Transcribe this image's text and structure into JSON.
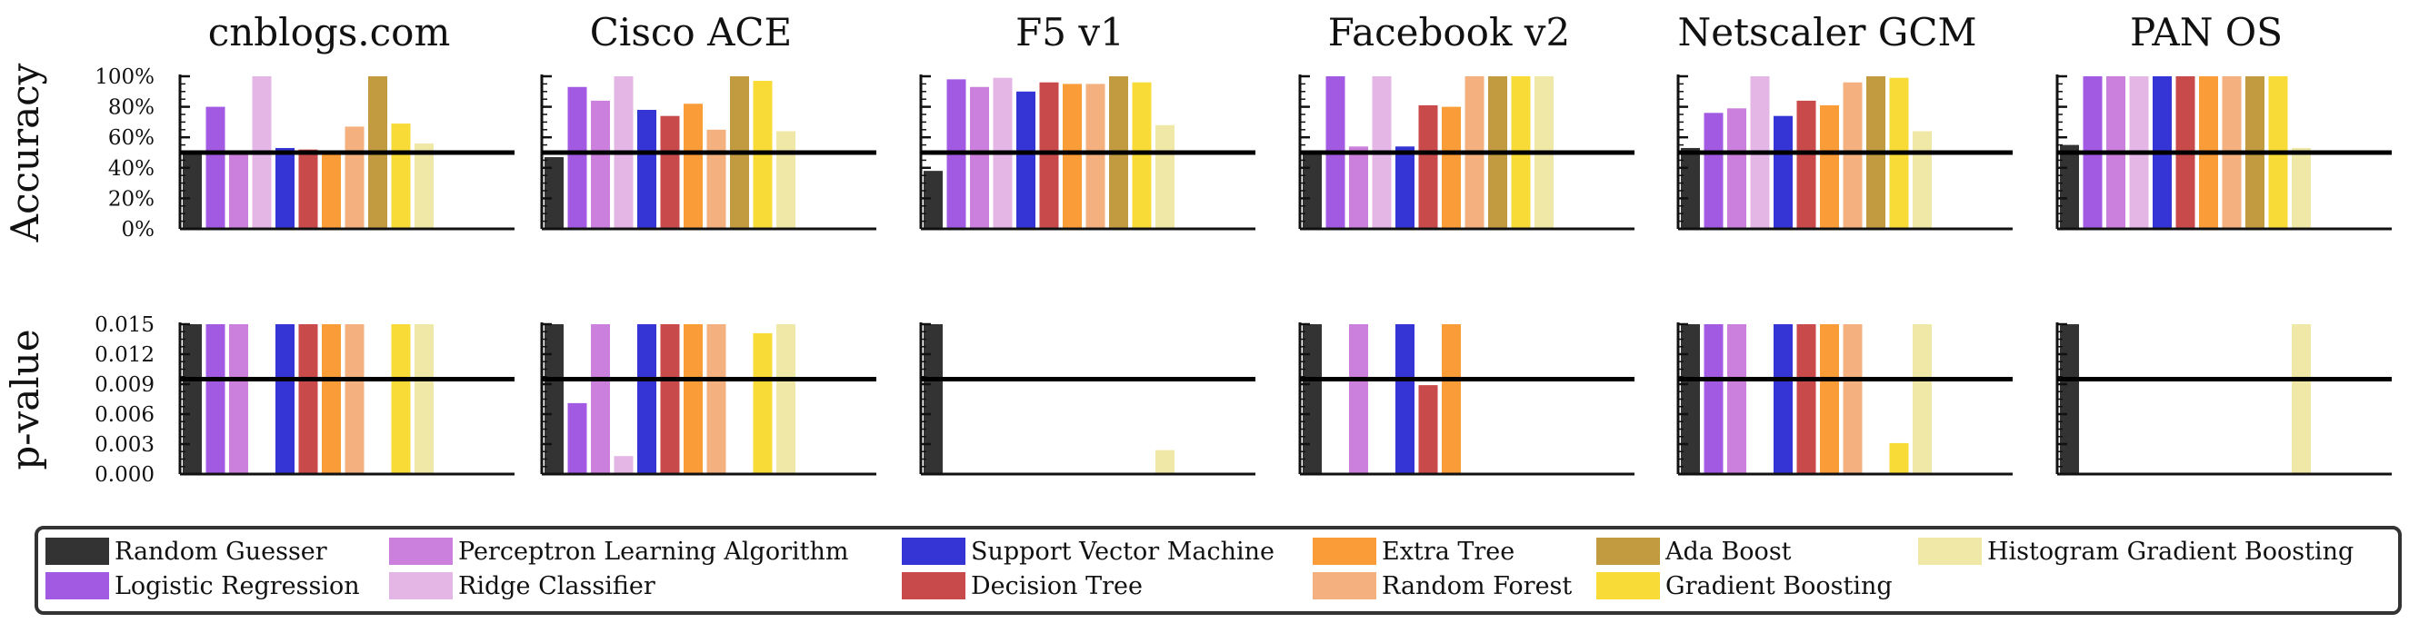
{
  "chart_data": {
    "type": "bar",
    "algorithms": [
      "Random Guesser",
      "Logistic Regression",
      "Perceptron Learning Algorithm",
      "Ridge Classifier",
      "Support Vector Machine",
      "Decision Tree",
      "Extra Tree",
      "Random Forest",
      "Ada Boost",
      "Gradient Boosting",
      "Histogram Gradient Boosting"
    ],
    "colors": [
      "#333333",
      "#a25ae3",
      "#cc80de",
      "#e4b6e6",
      "#3535d6",
      "#c84a4a",
      "#fa9d38",
      "#f4b07e",
      "#c29a40",
      "#f8db36",
      "#f0e8a6"
    ],
    "panels": [
      {
        "title": "cnblogs.com",
        "accuracy": [
          50,
          80,
          50,
          100,
          53,
          52,
          50,
          67,
          100,
          69,
          56
        ],
        "pvalue": [
          0.015,
          0.015,
          0.015,
          null,
          0.015,
          0.015,
          0.015,
          0.015,
          null,
          0.015,
          0.015
        ]
      },
      {
        "title": "Cisco ACE",
        "accuracy": [
          47,
          93,
          84,
          100,
          78,
          74,
          82,
          65,
          100,
          97,
          64
        ],
        "pvalue": [
          0.015,
          0.0071,
          0.015,
          0.0018,
          0.015,
          0.015,
          0.015,
          0.015,
          null,
          0.0141,
          0.015
        ]
      },
      {
        "title": "F5 v1",
        "accuracy": [
          38,
          98,
          93,
          99,
          90,
          96,
          95,
          95,
          100,
          96,
          68
        ],
        "pvalue": [
          0.015,
          null,
          null,
          null,
          null,
          null,
          null,
          null,
          null,
          null,
          0.0024
        ]
      },
      {
        "title": "Facebook v2",
        "accuracy": [
          50,
          100,
          54,
          100,
          54,
          81,
          80,
          100,
          100,
          100,
          100
        ],
        "pvalue": [
          0.015,
          null,
          0.015,
          null,
          0.015,
          0.0089,
          0.015,
          null,
          null,
          null,
          null
        ]
      },
      {
        "title": "Netscaler GCM",
        "accuracy": [
          53,
          76,
          79,
          100,
          74,
          84,
          81,
          96,
          100,
          99,
          64
        ],
        "pvalue": [
          0.015,
          0.015,
          0.015,
          null,
          0.015,
          0.015,
          0.015,
          0.015,
          null,
          0.0031,
          0.015
        ]
      },
      {
        "title": "PAN OS",
        "accuracy": [
          55,
          100,
          100,
          100,
          100,
          100,
          100,
          100,
          100,
          100,
          53
        ],
        "pvalue": [
          0.015,
          null,
          null,
          null,
          null,
          null,
          null,
          null,
          null,
          null,
          0.015
        ]
      }
    ],
    "accuracy_axis": {
      "label": "Accuracy",
      "ylim": [
        0,
        100
      ],
      "ticks": [
        "100%",
        "80%",
        "60%",
        "40%",
        "20%",
        "0%"
      ],
      "reference_line": 50
    },
    "pvalue_axis": {
      "label": "p-value",
      "ylim": [
        0,
        0.015
      ],
      "ticks": [
        "0.015",
        "0.012",
        "0.009",
        "0.006",
        "0.003",
        "0.000"
      ],
      "reference_line": 0.0095
    },
    "legend": {
      "placement": "bottom",
      "columns": 6
    }
  }
}
